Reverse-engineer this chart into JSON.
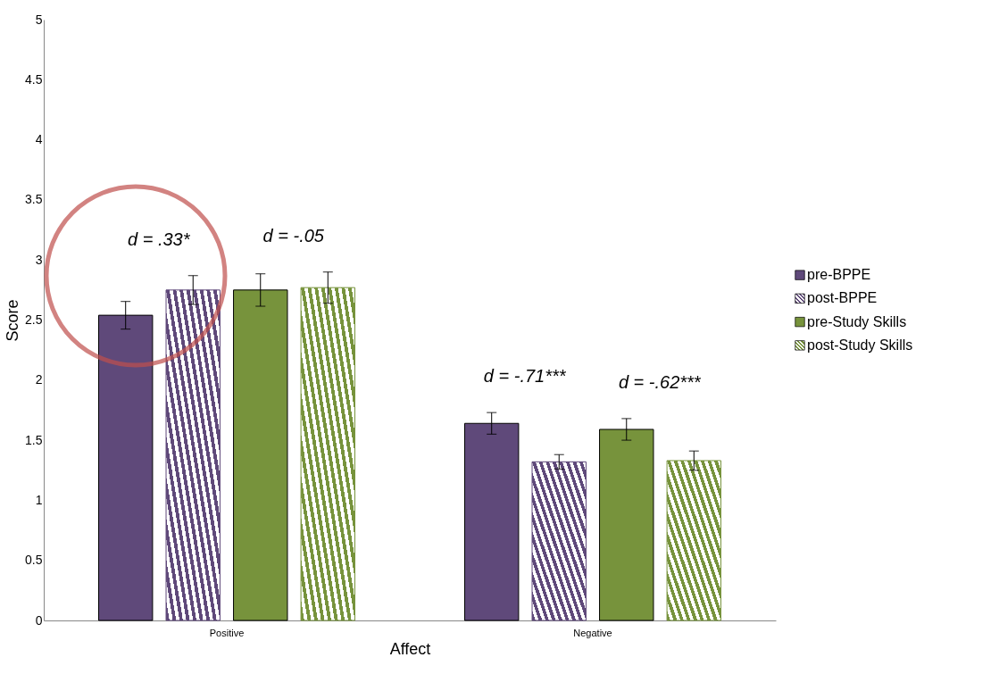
{
  "chart_data": {
    "type": "bar",
    "xlabel": "Affect",
    "ylabel": "Score",
    "categories": [
      "Positive",
      "Negative"
    ],
    "series": [
      {
        "name": "pre-BPPE",
        "color": "#5f497a",
        "values": [
          2.54,
          1.64
        ],
        "errors": [
          0.115,
          0.09
        ]
      },
      {
        "name": "post-BPPE",
        "color": "#5f497a",
        "values": [
          2.75,
          1.32
        ],
        "errors": [
          0.12,
          0.06
        ]
      },
      {
        "name": "pre-Study Skills",
        "color": "#77933c",
        "values": [
          2.75,
          1.59
        ],
        "errors": [
          0.135,
          0.09
        ]
      },
      {
        "name": "post-Study Skills",
        "color": "#77933c",
        "values": [
          2.77,
          1.33
        ],
        "errors": [
          0.13,
          0.08
        ]
      }
    ],
    "ylim": [
      0,
      5
    ],
    "yticks": [
      0,
      0.5,
      1,
      1.5,
      2,
      2.5,
      3,
      3.5,
      4,
      4.5,
      5
    ],
    "grid": false,
    "legend": "right",
    "annotations": [
      "d = .33*",
      "d = -.05",
      "d = -.71***",
      "d = -.62***"
    ]
  }
}
